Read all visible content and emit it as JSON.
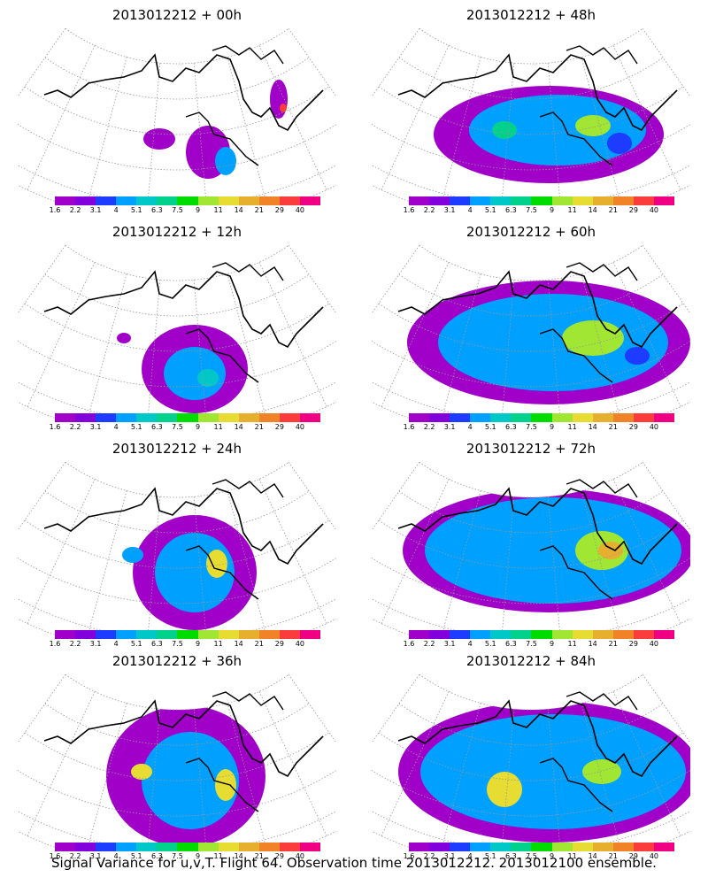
{
  "panels": [
    {
      "title": "2013012212 + 00h"
    },
    {
      "title": "2013012212 + 48h"
    },
    {
      "title": "2013012212 + 12h"
    },
    {
      "title": "2013012212 + 60h"
    },
    {
      "title": "2013012212 + 24h"
    },
    {
      "title": "2013012212 + 72h"
    },
    {
      "title": "2013012212 + 36h"
    },
    {
      "title": "2013012212 + 84h"
    }
  ],
  "colorbar": {
    "tick_labels": [
      "1.6",
      "2.2",
      "3.1",
      "4",
      "5.1",
      "6.3",
      "7.5",
      "9",
      "11",
      "14",
      "21",
      "29",
      "40"
    ],
    "colors": [
      "#a000c8",
      "#8200dc",
      "#1e3cff",
      "#00a0ff",
      "#00c8c8",
      "#00d28c",
      "#00dc00",
      "#a0e632",
      "#e6dc32",
      "#e6af2d",
      "#f08228",
      "#fa3c3c",
      "#f00082"
    ]
  },
  "caption": "Signal Variance for u,v,T. Flight 64. Observation time 2013012212. 2013012100 ensemble."
}
